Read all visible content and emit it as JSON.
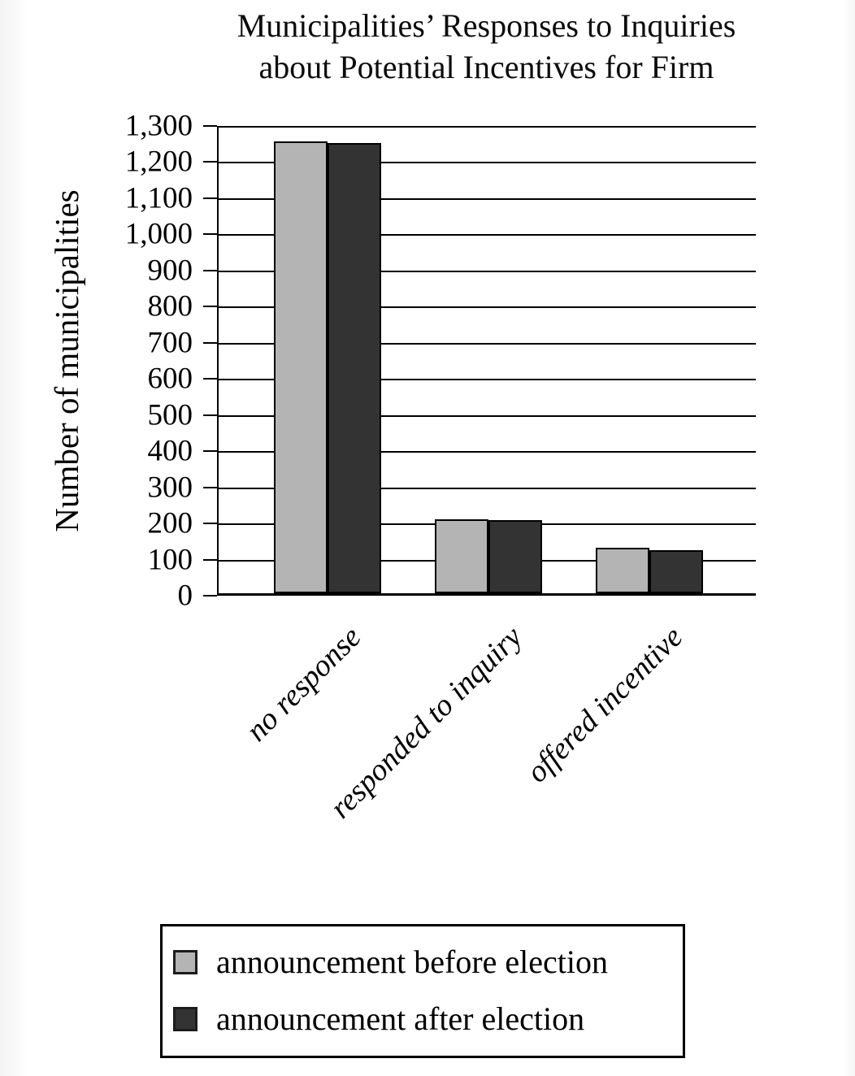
{
  "title": {
    "line1": "Municipalities’ Responses to Inquiries",
    "line2": "about Potential Incentives for Firm"
  },
  "y_axis": {
    "label": "Number of municipalities",
    "tick_labels": [
      "0",
      "100",
      "200",
      "300",
      "400",
      "500",
      "600",
      "700",
      "800",
      "900",
      "1,000",
      "1,100",
      "1,200",
      "1,300"
    ]
  },
  "x_axis": {
    "categories": [
      "no response",
      "responded to inquiry",
      "offered incentive"
    ]
  },
  "legend": {
    "items": [
      {
        "label": "announcement before election",
        "color": "#b4b4b4"
      },
      {
        "label": "announcement after election",
        "color": "#333333"
      }
    ]
  },
  "chart_data": {
    "type": "bar",
    "title": "Municipalities’ Responses to Inquiries about Potential Incentives for Firm",
    "ylabel": "Number of municipalities",
    "xlabel": "",
    "categories": [
      "no response",
      "responded to inquiry",
      "offered incentive"
    ],
    "series": [
      {
        "name": "announcement before election",
        "color": "#b4b4b4",
        "values": [
          1250,
          205,
          125
        ]
      },
      {
        "name": "announcement after election",
        "color": "#333333",
        "values": [
          1245,
          202,
          120
        ]
      }
    ],
    "ylim": [
      0,
      1300
    ],
    "ytick_step": 100,
    "grid": true,
    "legend_position": "bottom"
  }
}
